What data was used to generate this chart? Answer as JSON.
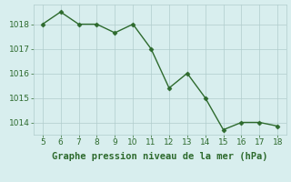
{
  "x": [
    5,
    6,
    7,
    8,
    9,
    10,
    11,
    12,
    13,
    14,
    15,
    16,
    17,
    18
  ],
  "y": [
    1018.0,
    1018.5,
    1018.0,
    1018.0,
    1017.65,
    1018.0,
    1017.0,
    1015.4,
    1016.0,
    1015.0,
    1013.7,
    1014.0,
    1014.0,
    1013.85
  ],
  "xlim": [
    4.5,
    18.5
  ],
  "ylim": [
    1013.5,
    1018.8
  ],
  "yticks": [
    1014,
    1015,
    1016,
    1017,
    1018
  ],
  "xticks": [
    5,
    6,
    7,
    8,
    9,
    10,
    11,
    12,
    13,
    14,
    15,
    16,
    17,
    18
  ],
  "line_color": "#2d6a2d",
  "marker_color": "#2d6a2d",
  "bg_color": "#d8eeee",
  "grid_color": "#b0cccc",
  "xlabel": "Graphe pression niveau de la mer (hPa)",
  "tick_fontsize": 6.5,
  "label_fontsize": 7.5
}
